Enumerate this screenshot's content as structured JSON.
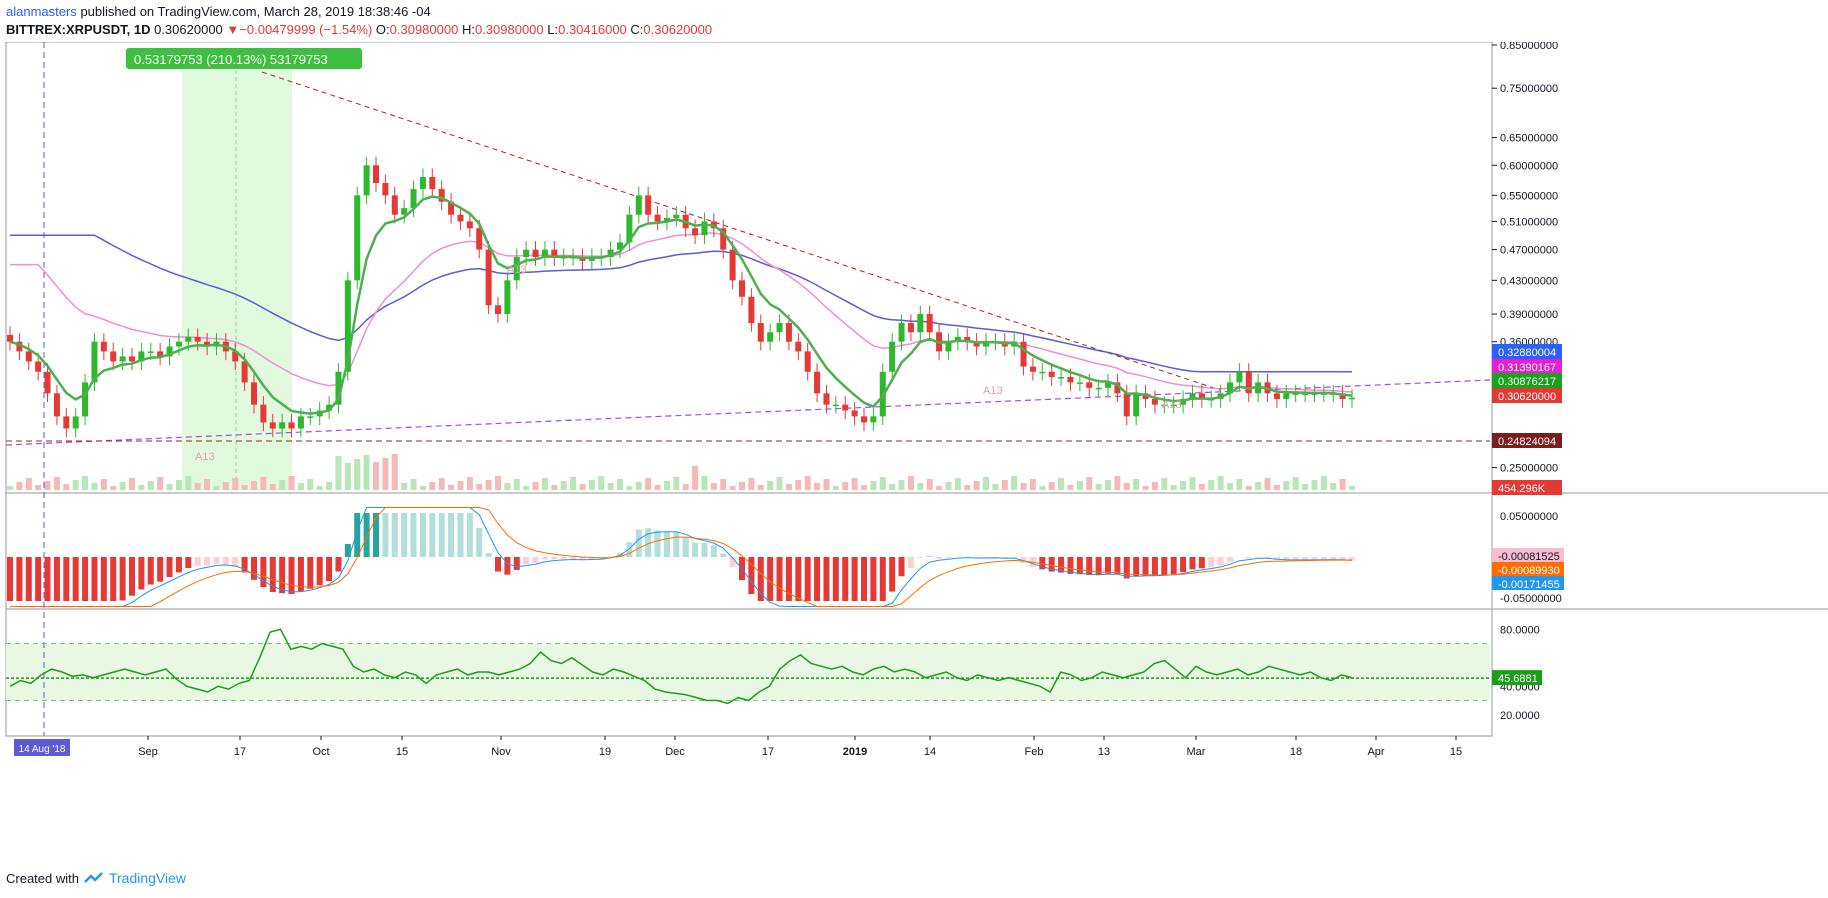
{
  "header": {
    "author": "alanmasters",
    "published_text": "published on TradingView.com, March 28, 2019 18:38:46 -04",
    "symbol": "BITTREX:XRPUSDT, 1D",
    "last": "0.30620000",
    "arrow": "▼",
    "change": "−0.00479999 (−1.54%)",
    "o_label": "O:",
    "o_value": "0.30980000",
    "h_label": "H:",
    "h_value": "0.30980000",
    "l_label": "L:",
    "l_value": "0.30416000",
    "c_label": "C:",
    "c_value": "0.30620000"
  },
  "footer": {
    "created_with": "Created with",
    "brand": "TradingView"
  },
  "chart_data": {
    "type": "candlestick",
    "x_tick_labels": [
      "Sep",
      "17",
      "Oct",
      "15",
      "Nov",
      "19",
      "Dec",
      "17",
      "2019",
      "14",
      "Feb",
      "13",
      "Mar",
      "18",
      "Apr",
      "15"
    ],
    "x_highlight_label": "14 Aug '18",
    "price_axis_labels": [
      "0.85000000",
      "0.75000000",
      "0.65000000",
      "0.60000000",
      "0.55000000",
      "0.51000000",
      "0.47000000",
      "0.43000000",
      "0.39000000",
      "0.36000000",
      "0.25000000",
      "0.23500000"
    ],
    "price_axis_values": [
      0.85,
      0.75,
      0.65,
      0.6,
      0.55,
      0.51,
      0.47,
      0.43,
      0.39,
      0.36,
      0.25,
      0.235
    ],
    "price_badges": [
      {
        "label": "0.32880004",
        "value": 0.3288,
        "color": "#2962ff"
      },
      {
        "label": "0.31390167",
        "value": 0.3139,
        "color": "#e91ed0"
      },
      {
        "label": "0.30876217",
        "value": 0.30876,
        "color": "#1aa31a"
      },
      {
        "label": "0.30620000",
        "value": 0.3062,
        "color": "#e53935"
      },
      {
        "label": "0.24824094",
        "value": 0.24824,
        "color": "#7b1d1d"
      },
      {
        "label": "454.296K",
        "value": 0,
        "color": "#e53935"
      }
    ],
    "measure_label": "0.53179753 (210.13%) 53179753",
    "annotation_labels": [
      "A13",
      "A13",
      "A13",
      "A13"
    ],
    "macd_axis_labels": [
      "0.05000000",
      "-0.05000000"
    ],
    "macd_badges": [
      {
        "label": "-0.00081525",
        "color": "#f8bbd0",
        "text": "#131722"
      },
      {
        "label": "-0.00089930",
        "color": "#ff6d00",
        "text": "#ffffff"
      },
      {
        "label": "-0.00171455",
        "color": "#2196f3",
        "text": "#ffffff"
      }
    ],
    "rsi_axis_labels": [
      "80.0000",
      "40.0000",
      "20.0000"
    ],
    "rsi_badge": "45.6881",
    "colors": {
      "up": "#2eb82e",
      "down": "#e53935",
      "ema_slow": "#5b5bd6",
      "ema_mid": "#f28cd8",
      "ema_fast": "#4caf50",
      "rsi": "#1a9e1a"
    },
    "candles_close": [
      0.36,
      0.35,
      0.34,
      0.33,
      0.31,
      0.29,
      0.28,
      0.29,
      0.32,
      0.36,
      0.35,
      0.34,
      0.345,
      0.34,
      0.35,
      0.35,
      0.345,
      0.355,
      0.36,
      0.365,
      0.36,
      0.355,
      0.36,
      0.35,
      0.34,
      0.32,
      0.3,
      0.285,
      0.28,
      0.285,
      0.28,
      0.29,
      0.29,
      0.295,
      0.3,
      0.33,
      0.43,
      0.55,
      0.6,
      0.57,
      0.55,
      0.52,
      0.53,
      0.56,
      0.58,
      0.56,
      0.54,
      0.52,
      0.51,
      0.5,
      0.47,
      0.4,
      0.39,
      0.43,
      0.46,
      0.47,
      0.46,
      0.47,
      0.46,
      0.46,
      0.46,
      0.455,
      0.46,
      0.46,
      0.47,
      0.48,
      0.52,
      0.55,
      0.52,
      0.51,
      0.515,
      0.52,
      0.5,
      0.49,
      0.51,
      0.5,
      0.47,
      0.43,
      0.41,
      0.38,
      0.36,
      0.37,
      0.38,
      0.36,
      0.35,
      0.33,
      0.31,
      0.3,
      0.3,
      0.295,
      0.29,
      0.285,
      0.29,
      0.33,
      0.36,
      0.38,
      0.37,
      0.39,
      0.37,
      0.35,
      0.36,
      0.365,
      0.36,
      0.355,
      0.36,
      0.36,
      0.355,
      0.36,
      0.335,
      0.33,
      0.33,
      0.325,
      0.325,
      0.32,
      0.32,
      0.315,
      0.315,
      0.32,
      0.31,
      0.29,
      0.31,
      0.305,
      0.3,
      0.3,
      0.3,
      0.305,
      0.31,
      0.305,
      0.305,
      0.31,
      0.32,
      0.33,
      0.31,
      0.32,
      0.31,
      0.305,
      0.31,
      0.31,
      0.31,
      0.31,
      0.31,
      0.31,
      0.305,
      0.306
    ],
    "rsi_values": [
      40,
      44,
      42,
      48,
      52,
      50,
      47,
      48,
      46,
      48,
      50,
      52,
      50,
      48,
      50,
      52,
      45,
      40,
      38,
      36,
      40,
      38,
      42,
      44,
      60,
      78,
      80,
      66,
      68,
      66,
      70,
      68,
      66,
      54,
      50,
      52,
      48,
      46,
      50,
      48,
      42,
      48,
      50,
      52,
      48,
      50,
      50,
      48,
      50,
      52,
      56,
      64,
      58,
      56,
      60,
      55,
      50,
      48,
      52,
      50,
      47,
      44,
      38,
      36,
      35,
      34,
      32,
      30,
      30,
      28,
      32,
      30,
      36,
      40,
      52,
      58,
      62,
      56,
      54,
      52,
      54,
      50,
      48,
      52,
      54,
      50,
      52,
      50,
      46,
      48,
      50,
      46,
      44,
      48,
      46,
      44,
      46,
      44,
      42,
      40,
      36,
      50,
      48,
      44,
      46,
      50,
      48,
      46,
      48,
      50,
      56,
      58,
      52,
      46,
      54,
      50,
      48,
      50,
      52,
      48,
      50,
      54,
      52,
      50,
      48,
      50,
      46,
      44,
      48,
      46
    ],
    "rsi_levels": {
      "upper": 70,
      "lower": 30,
      "midline": 45.6881
    }
  }
}
